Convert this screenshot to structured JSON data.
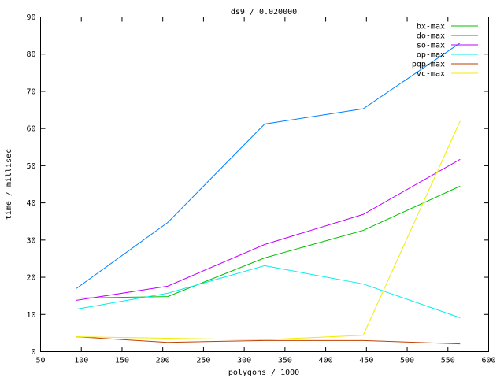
{
  "chart_data": {
    "type": "line",
    "title": "ds9 / 0.020000",
    "xlabel": "polygons / 1000",
    "ylabel": "time / millisec",
    "xlim": [
      50,
      600
    ],
    "ylim": [
      0,
      90
    ],
    "xticks": [
      50,
      100,
      150,
      200,
      250,
      300,
      350,
      400,
      450,
      500,
      550,
      600
    ],
    "yticks": [
      0,
      10,
      20,
      30,
      40,
      50,
      60,
      70,
      80,
      90
    ],
    "grid": false,
    "legend_position": "top-right",
    "x": [
      94,
      206,
      325,
      446,
      565
    ],
    "series": [
      {
        "name": "bx-max",
        "color": "#00c000",
        "values": [
          14.4,
          14.8,
          25.2,
          32.6,
          44.5
        ]
      },
      {
        "name": "do-max",
        "color": "#0080ff",
        "values": [
          17.0,
          34.7,
          61.2,
          65.3,
          83.0
        ]
      },
      {
        "name": "so-max",
        "color": "#c000ff",
        "values": [
          13.8,
          17.6,
          28.8,
          36.9,
          51.7
        ]
      },
      {
        "name": "op-max",
        "color": "#00eeee",
        "values": [
          11.4,
          15.7,
          23.1,
          18.2,
          9.1
        ]
      },
      {
        "name": "pqp-max",
        "color": "#c04000",
        "values": [
          4.0,
          2.5,
          3.0,
          3.0,
          2.1
        ]
      },
      {
        "name": "vc-max",
        "color": "#eeee00",
        "values": [
          4.0,
          3.6,
          3.2,
          4.4,
          62.0
        ]
      }
    ]
  }
}
